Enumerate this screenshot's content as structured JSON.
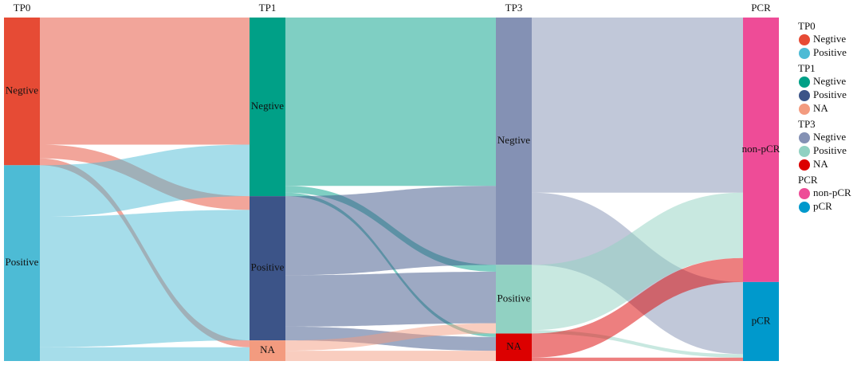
{
  "chart_data": {
    "type": "sankey",
    "stages": [
      {
        "name": "TP0",
        "nodes": [
          {
            "name": "Negtive",
            "color": "#e64b35"
          },
          {
            "name": "Positive",
            "color": "#4dbbd5"
          }
        ]
      },
      {
        "name": "TP1",
        "nodes": [
          {
            "name": "Negtive",
            "color": "#00a087"
          },
          {
            "name": "Positive",
            "color": "#3c5488"
          },
          {
            "name": "NA",
            "color": "#f39b7f"
          }
        ]
      },
      {
        "name": "TP3",
        "nodes": [
          {
            "name": "Negtive",
            "color": "#8491b4"
          },
          {
            "name": "Positive",
            "color": "#91d1c2"
          },
          {
            "name": "NA",
            "color": "#dc0000"
          }
        ]
      },
      {
        "name": "PCR",
        "nodes": [
          {
            "name": "non-pCR",
            "color": "#ee4c97"
          },
          {
            "name": "pCR",
            "color": "#0099cc"
          }
        ]
      }
    ],
    "flows": [
      [
        [
          37,
          4,
          2
        ],
        [
          15,
          38,
          4
        ]
      ],
      [
        [
          49,
          2,
          1
        ],
        [
          23,
          15,
          4
        ],
        [
          0,
          3,
          3
        ]
      ],
      [
        [
          51,
          21
        ],
        [
          19,
          1
        ],
        [
          7,
          1
        ]
      ]
    ]
  }
}
